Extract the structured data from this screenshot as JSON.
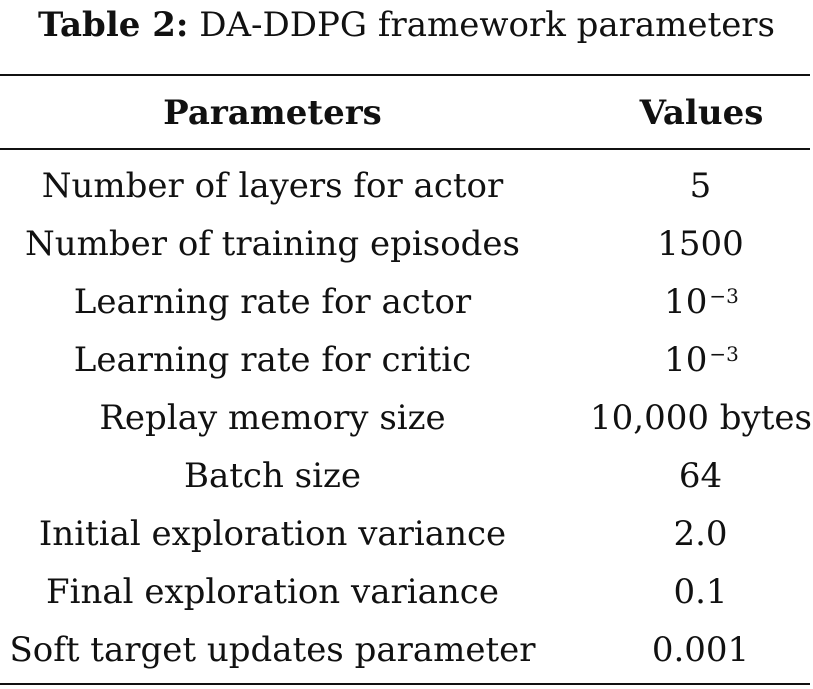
{
  "caption": {
    "label": "Table 2:",
    "title": "DA-DDPG framework parameters"
  },
  "table": {
    "headers": [
      "Parameters",
      "Values"
    ],
    "rows": [
      {
        "parameter": "Number of layers for actor",
        "value": "5",
        "exponent": ""
      },
      {
        "parameter": "Number of training episodes",
        "value": "1500",
        "exponent": ""
      },
      {
        "parameter": "Learning rate for actor",
        "value": "10",
        "exponent": "−3"
      },
      {
        "parameter": "Learning rate for critic",
        "value": "10",
        "exponent": "−3"
      },
      {
        "parameter": "Replay memory size",
        "value": "10,000 bytes",
        "exponent": ""
      },
      {
        "parameter": "Batch size",
        "value": "64",
        "exponent": ""
      },
      {
        "parameter": "Initial exploration variance",
        "value": "2.0",
        "exponent": ""
      },
      {
        "parameter": "Final exploration variance",
        "value": "0.1",
        "exponent": ""
      },
      {
        "parameter": "Soft target updates parameter",
        "value": "0.001",
        "exponent": ""
      }
    ]
  }
}
